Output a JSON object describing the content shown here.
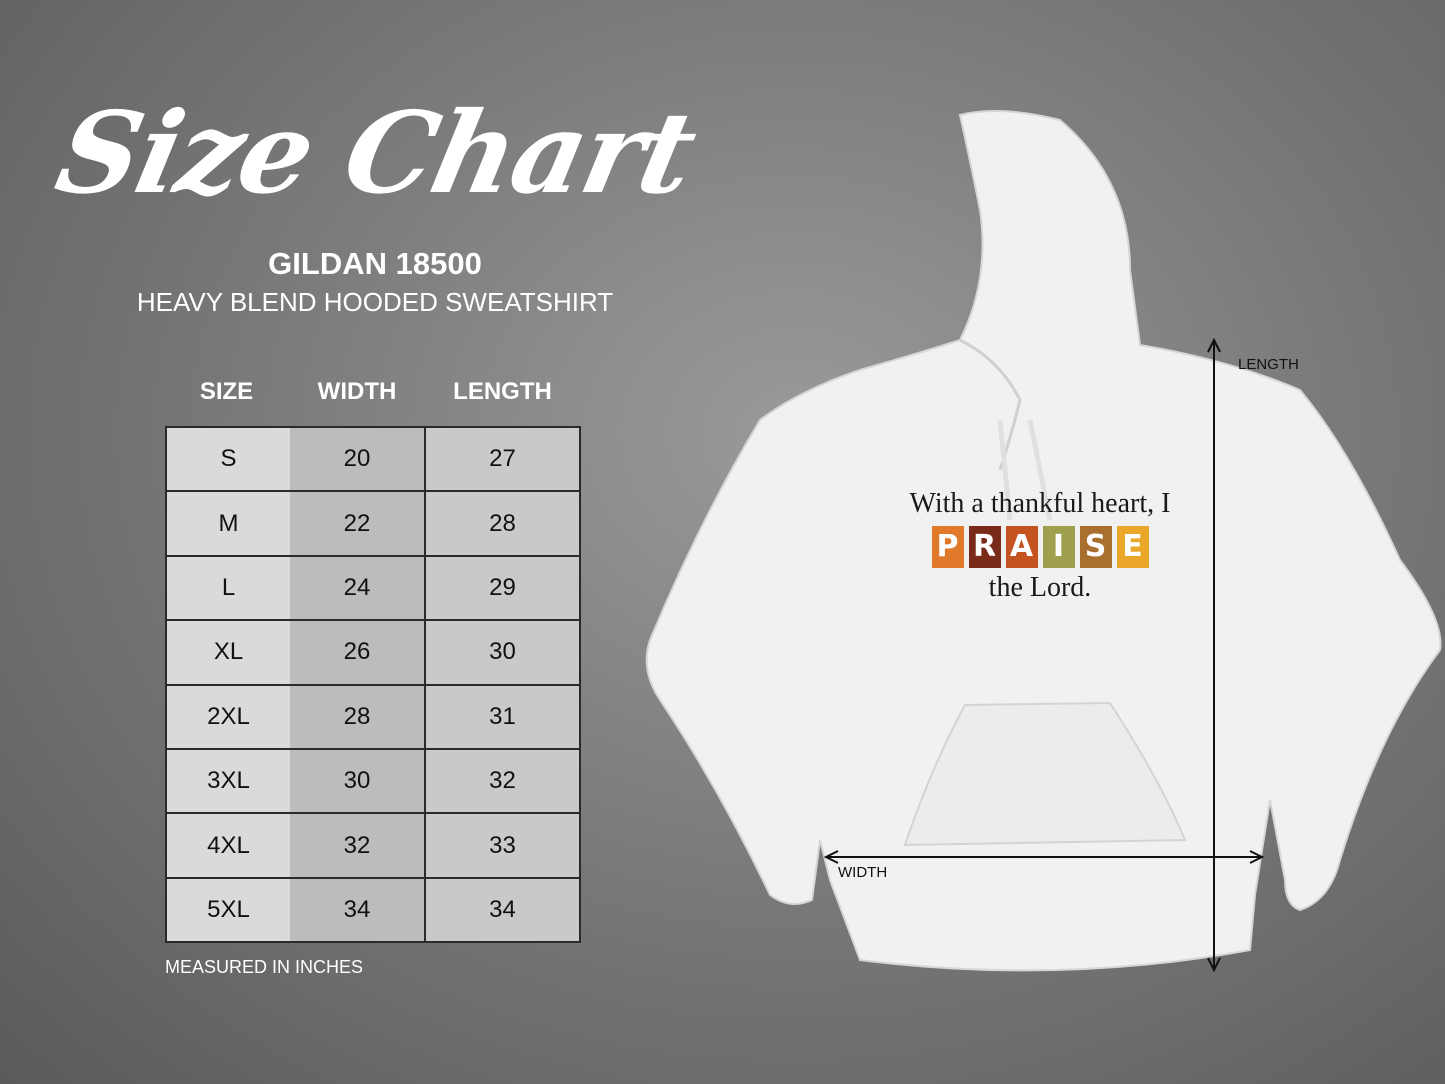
{
  "title": "Size Chart",
  "model": "GILDAN 18500",
  "subtitle": "HEAVY BLEND HOODED SWEATSHIRT",
  "table": {
    "headers": [
      "SIZE",
      "WIDTH",
      "LENGTH"
    ],
    "rows": [
      [
        "S",
        "20",
        "27"
      ],
      [
        "M",
        "22",
        "28"
      ],
      [
        "L",
        "24",
        "29"
      ],
      [
        "XL",
        "26",
        "30"
      ],
      [
        "2XL",
        "28",
        "31"
      ],
      [
        "3XL",
        "30",
        "32"
      ],
      [
        "4XL",
        "32",
        "33"
      ],
      [
        "5XL",
        "34",
        "34"
      ]
    ]
  },
  "note": "MEASURED IN INCHES",
  "diagram": {
    "length_label": "LENGTH",
    "width_label": "WIDTH"
  },
  "print": {
    "line1": "With a thankful heart, I",
    "word": [
      "P",
      "R",
      "A",
      "I",
      "S",
      "E"
    ],
    "word_colors": [
      "#e07a2a",
      "#7a2a18",
      "#c5531f",
      "#9ea04e",
      "#a86f2f",
      "#eba72a"
    ],
    "line3": "the Lord."
  }
}
